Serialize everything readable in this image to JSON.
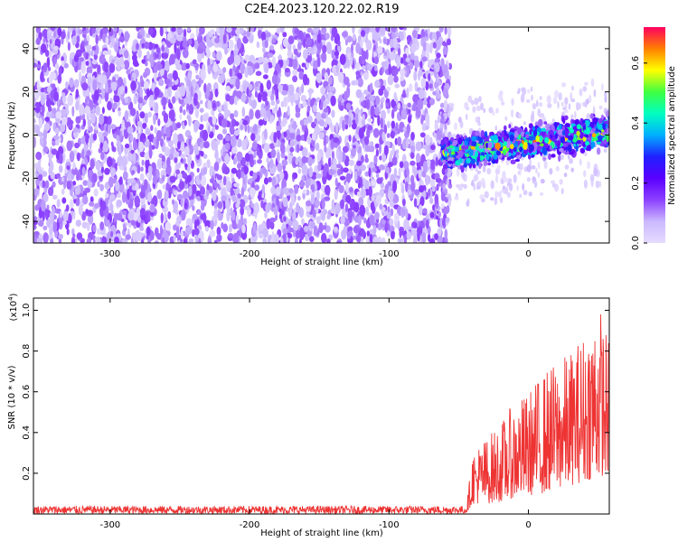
{
  "title": "C2E4.2023.120.22.02.R19",
  "chart_data": [
    {
      "type": "heatmap",
      "xlabel": "Height of straight line (km)",
      "ylabel": "Frequency (Hz)",
      "xlim": [
        -355,
        58
      ],
      "ylim": [
        -50,
        50
      ],
      "x_ticks": [
        -300,
        -200,
        -100,
        0
      ],
      "y_ticks": [
        -40,
        -20,
        0,
        20,
        40
      ],
      "colorbar": {
        "label": "Normalized spectral amplitude",
        "range": [
          0,
          0.72
        ],
        "ticks": [
          "0.0",
          "0.2",
          "0.4",
          "0.6"
        ],
        "colors": [
          "#e6dcff",
          "#cbb8ff",
          "#8c40ff",
          "#5a00ff",
          "#2020ff",
          "#00b0ff",
          "#00ffc0",
          "#40ff40",
          "#ffff00",
          "#ff8000",
          "#ff0060"
        ]
      },
      "regions": [
        {
          "x_range": [
            -355,
            -56
          ],
          "y_range": [
            -50,
            50
          ],
          "amplitude_range": [
            0.0,
            0.15
          ]
        },
        {
          "x_range": [
            -62,
            58
          ],
          "y_range": [
            -10,
            10
          ],
          "amplitude_range": [
            0.1,
            0.7
          ]
        },
        {
          "x_range": [
            -62,
            58
          ],
          "y_range": [
            -25,
            25
          ],
          "amplitude_range": [
            0.0,
            0.08
          ]
        }
      ],
      "peak_line": {
        "x_start": -60,
        "y_start": -9,
        "x_end": 58,
        "y_end": 2
      }
    },
    {
      "type": "line",
      "xlabel": "Height of straight line (km)",
      "ylabel": "SNR (10 * v/v)",
      "y_multiplier": "(x10",
      "y_multiplier_exp": "4",
      "y_multiplier_close": ")",
      "xlim": [
        -355,
        58
      ],
      "ylim": [
        0,
        1.06
      ],
      "x_ticks": [
        -300,
        -200,
        -100,
        0
      ],
      "y_ticks": [
        0.2,
        0.4,
        0.6,
        0.8,
        1.0
      ],
      "series": [
        {
          "color": "#ee3333",
          "envelope_x": [
            -355,
            -45,
            -43,
            -40,
            -30,
            -20,
            -10,
            0,
            10,
            20,
            30,
            40,
            50,
            58
          ],
          "envelope_max": [
            0.04,
            0.04,
            0.12,
            0.32,
            0.38,
            0.45,
            0.55,
            0.6,
            0.7,
            0.75,
            0.8,
            0.9,
            1.06,
            0.85
          ],
          "envelope_min": [
            0.0,
            0.0,
            0.02,
            0.05,
            0.05,
            0.06,
            0.08,
            0.09,
            0.1,
            0.12,
            0.14,
            0.16,
            0.18,
            0.2
          ]
        }
      ]
    }
  ]
}
